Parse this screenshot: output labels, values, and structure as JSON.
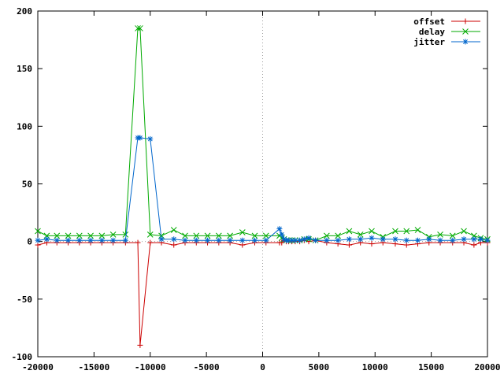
{
  "chart_data": {
    "type": "line",
    "title": "",
    "xlabel": "",
    "ylabel": "",
    "xlim": [
      -20000,
      20000
    ],
    "ylim": [
      -100,
      200
    ],
    "x_ticks": [
      -20000,
      -15000,
      -10000,
      -5000,
      0,
      5000,
      10000,
      15000,
      20000
    ],
    "y_ticks": [
      -100,
      -50,
      0,
      50,
      100,
      150,
      200
    ],
    "zero_line_x": 0,
    "grid": false,
    "legend_position": "top-right",
    "series": [
      {
        "name": "offset",
        "color": "#cc0000",
        "marker": "plus",
        "x": [
          -20000,
          -19200,
          -18300,
          -17300,
          -16300,
          -15300,
          -14300,
          -13300,
          -12200,
          -11100,
          -10900,
          -10000,
          -9000,
          -7900,
          -6900,
          -5900,
          -4900,
          -3900,
          -2900,
          -1800,
          -700,
          300,
          1500,
          1700,
          1900,
          2100,
          2300,
          2600,
          2900,
          3300,
          3700,
          4100,
          4700,
          5700,
          6700,
          7700,
          8700,
          9700,
          10700,
          11800,
          12800,
          13800,
          14800,
          15800,
          16900,
          17900,
          18800,
          19400,
          20000
        ],
        "y": [
          -3,
          -1,
          -1,
          -1,
          -1,
          -1,
          -1,
          -1,
          -1,
          -1,
          -90,
          -1,
          -1,
          -3,
          -1,
          -1,
          -1,
          -1,
          -1,
          -3,
          -1,
          -1,
          -1,
          -1,
          1,
          0,
          0,
          0,
          0,
          0,
          1,
          0,
          1,
          -1,
          -2,
          -3,
          -1,
          -2,
          -1,
          -2,
          -3,
          -2,
          -1,
          -1,
          -1,
          -1,
          -3,
          -1,
          -1
        ]
      },
      {
        "name": "delay",
        "color": "#00aa00",
        "marker": "x",
        "x": [
          -20000,
          -19200,
          -18300,
          -17300,
          -16300,
          -15300,
          -14300,
          -13300,
          -12200,
          -11100,
          -10900,
          -10000,
          -9000,
          -7900,
          -6900,
          -5900,
          -4900,
          -3900,
          -2900,
          -1800,
          -700,
          300,
          1500,
          1700,
          1900,
          2100,
          2300,
          2600,
          2900,
          3300,
          3700,
          4100,
          4700,
          5700,
          6700,
          7700,
          8700,
          9700,
          10700,
          11800,
          12800,
          13800,
          14800,
          15800,
          16900,
          17900,
          18800,
          19400,
          20000
        ],
        "y": [
          9,
          5,
          5,
          5,
          5,
          5,
          5,
          6,
          6,
          185,
          185,
          6,
          5,
          10,
          5,
          5,
          5,
          5,
          5,
          8,
          5,
          5,
          5,
          3,
          2,
          1,
          1,
          1,
          1,
          1,
          2,
          2,
          1,
          5,
          5,
          9,
          6,
          9,
          4,
          9,
          9,
          10,
          4,
          6,
          5,
          9,
          5,
          3,
          2
        ]
      },
      {
        "name": "jitter",
        "color": "#0066cc",
        "marker": "star",
        "x": [
          -20000,
          -19200,
          -18300,
          -17300,
          -16300,
          -15300,
          -14300,
          -13300,
          -12200,
          -11100,
          -10900,
          -10000,
          -9000,
          -7900,
          -6900,
          -5900,
          -4900,
          -3900,
          -2900,
          -1800,
          -700,
          300,
          1500,
          1700,
          1900,
          2100,
          2300,
          2600,
          2900,
          3300,
          3700,
          4100,
          4700,
          5700,
          6700,
          7700,
          8700,
          9700,
          10700,
          11800,
          12800,
          13800,
          14800,
          15800,
          16900,
          17900,
          18800,
          19400,
          20000
        ],
        "y": [
          1,
          2,
          1,
          1,
          1,
          1,
          1,
          1,
          1,
          90,
          90,
          89,
          2,
          2,
          1,
          1,
          1,
          1,
          1,
          1,
          1,
          1,
          11,
          6,
          2,
          1,
          1,
          1,
          1,
          1,
          2,
          3,
          1,
          1,
          1,
          2,
          2,
          3,
          2,
          2,
          1,
          1,
          2,
          1,
          1,
          2,
          2,
          2,
          1
        ]
      }
    ]
  }
}
